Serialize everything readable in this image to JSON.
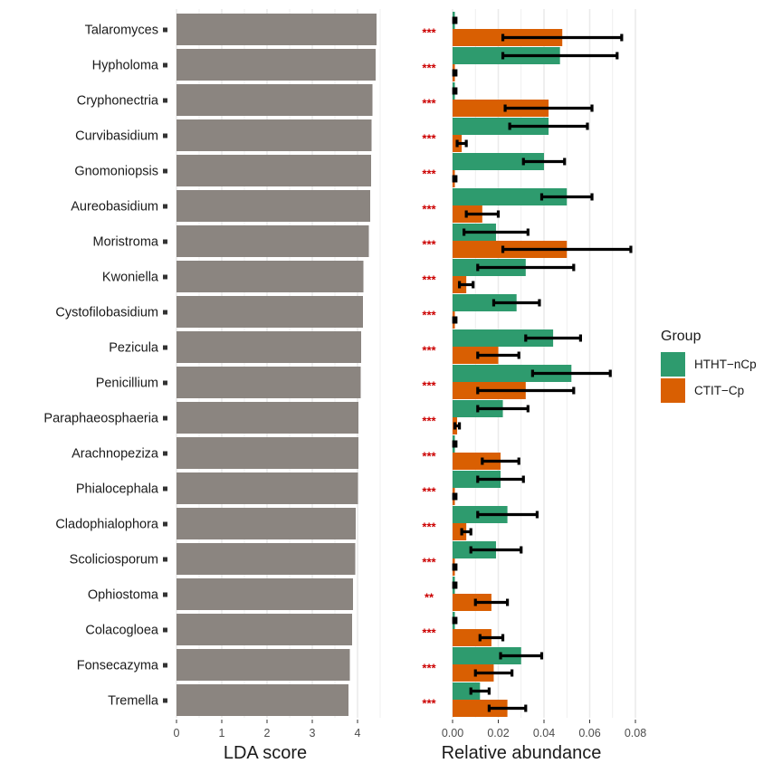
{
  "chart_data": [
    {
      "type": "bar",
      "orientation": "horizontal",
      "xlabel": "LDA score",
      "xlim": [
        0,
        4.5
      ],
      "xticks": [
        "0",
        "1",
        "2",
        "3",
        "4"
      ],
      "bar_color": "#8b8580",
      "categories": [
        "Talaromyces",
        "Hypholoma",
        "Cryphonectria",
        "Curvibasidium",
        "Gnomoniopsis",
        "Aureobasidium",
        "Moristroma",
        "Kwoniella",
        "Cystofilobasidium",
        "Pezicula",
        "Penicillium",
        "Paraphaeosphaeria",
        "Arachnopeziza",
        "Phialocephala",
        "Cladophialophora",
        "Scoliciosporum",
        "Ophiostoma",
        "Colacogloea",
        "Fonsecazyma",
        "Tremella"
      ],
      "values": [
        4.42,
        4.4,
        4.33,
        4.31,
        4.3,
        4.28,
        4.25,
        4.13,
        4.12,
        4.08,
        4.07,
        4.02,
        4.02,
        4.01,
        3.96,
        3.95,
        3.9,
        3.88,
        3.83,
        3.8
      ]
    },
    {
      "type": "bar",
      "orientation": "horizontal",
      "xlabel": "Relative abundance",
      "xlim": [
        0,
        0.08
      ],
      "xticks": [
        "0.00",
        "0.02",
        "0.04",
        "0.06",
        "0.08"
      ],
      "significance": [
        "***",
        "***",
        "***",
        "***",
        "***",
        "***",
        "***",
        "***",
        "***",
        "***",
        "***",
        "***",
        "***",
        "***",
        "***",
        "***",
        "**",
        "***",
        "***",
        "***"
      ],
      "legend": {
        "title": "Group",
        "position": "right"
      },
      "series": [
        {
          "name": "HTHT−nCp",
          "color": "#2e9b6e",
          "values": [
            0.001,
            0.047,
            0.001,
            0.042,
            0.04,
            0.05,
            0.019,
            0.032,
            0.028,
            0.044,
            0.052,
            0.022,
            0.001,
            0.021,
            0.024,
            0.019,
            0.001,
            0.001,
            0.03,
            0.012
          ],
          "errors": [
            0.0005,
            0.025,
            0.0005,
            0.017,
            0.009,
            0.011,
            0.014,
            0.021,
            0.01,
            0.012,
            0.017,
            0.011,
            0.0005,
            0.01,
            0.013,
            0.011,
            0.0005,
            0.0005,
            0.009,
            0.004
          ]
        },
        {
          "name": "CTIT−Cp",
          "color": "#d95f02",
          "values": [
            0.048,
            0.001,
            0.042,
            0.004,
            0.001,
            0.013,
            0.05,
            0.006,
            0.001,
            0.02,
            0.032,
            0.002,
            0.021,
            0.001,
            0.006,
            0.001,
            0.017,
            0.017,
            0.018,
            0.024
          ],
          "errors": [
            0.026,
            0.0005,
            0.019,
            0.002,
            0.0005,
            0.007,
            0.028,
            0.003,
            0.0005,
            0.009,
            0.021,
            0.001,
            0.008,
            0.0005,
            0.002,
            0.0005,
            0.007,
            0.005,
            0.008,
            0.008
          ]
        }
      ]
    }
  ]
}
